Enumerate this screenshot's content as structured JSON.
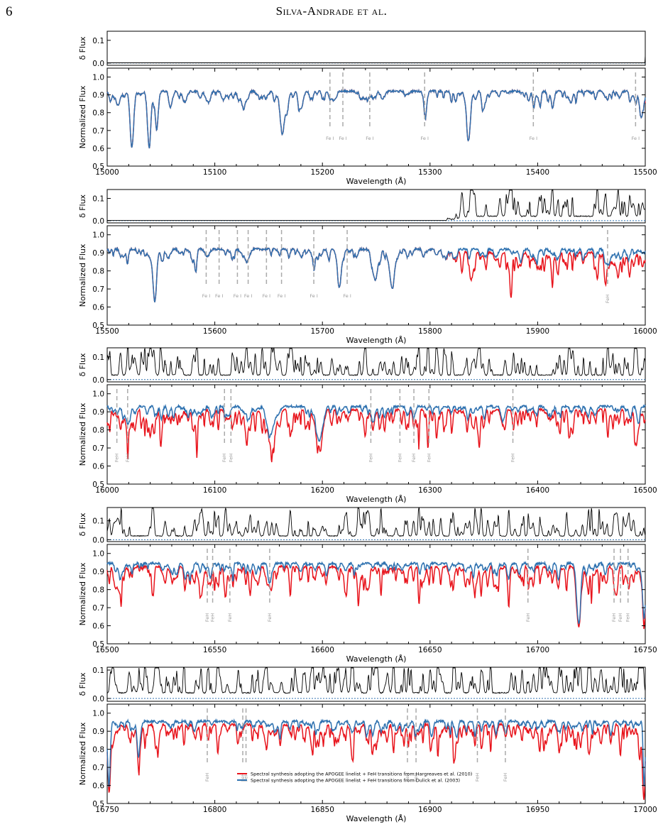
{
  "page": {
    "number": "6",
    "running_head": "Silva-Andrade et al."
  },
  "colors": {
    "red_model": "#e8141c",
    "blue_model": "#2f72b0",
    "residual": "#000000",
    "zero_line": "#2f72b0",
    "line_marker": "#aaaaaa"
  },
  "chart_data": [
    {
      "type": "line",
      "panel": 1,
      "xlabel": "Wavelength (Å)",
      "ylabel_top": "δ Flux",
      "ylabel_bottom": "Normalized Flux",
      "xlim": [
        15000,
        15500
      ],
      "xticks": [
        15000,
        15100,
        15200,
        15300,
        15400,
        15500
      ],
      "ylim_top": [
        -0.01,
        0.14
      ],
      "yticks_top": [
        0.0,
        0.1
      ],
      "ylim_bottom": [
        0.5,
        1.05
      ],
      "yticks_bottom": [
        0.5,
        0.6,
        0.7,
        0.8,
        0.9,
        1.0
      ],
      "divergence_start": 15500,
      "divergence_full": 15500,
      "continuum": 0.92,
      "absorption_features": [
        {
          "x": 15023,
          "depth": 0.31,
          "width": 1.6
        },
        {
          "x": 15039,
          "depth": 0.3,
          "width": 1.6
        },
        {
          "x": 15046,
          "depth": 0.2,
          "width": 1.5
        },
        {
          "x": 15163,
          "depth": 0.22,
          "width": 1.6
        },
        {
          "x": 15167,
          "depth": 0.12,
          "width": 1.5
        },
        {
          "x": 15336,
          "depth": 0.26,
          "width": 1.6
        },
        {
          "x": 15296,
          "depth": 0.06,
          "width": 1.5
        },
        {
          "x": 15211,
          "depth": 0.05,
          "width": 1.5
        },
        {
          "x": 15010,
          "depth": 0.08,
          "width": 2
        },
        {
          "x": 15072,
          "depth": 0.06,
          "width": 2
        },
        {
          "x": 15093,
          "depth": 0.05,
          "width": 2
        },
        {
          "x": 15128,
          "depth": 0.06,
          "width": 2
        },
        {
          "x": 15180,
          "depth": 0.1,
          "width": 2
        },
        {
          "x": 15256,
          "depth": 0.04,
          "width": 2
        },
        {
          "x": 15430,
          "depth": 0.04,
          "width": 2
        },
        {
          "x": 15497,
          "depth": 0.08,
          "width": 2
        }
      ],
      "line_markers": [
        {
          "x": 15207,
          "label": "Fe I"
        },
        {
          "x": 15219,
          "label": "Fe I"
        },
        {
          "x": 15244,
          "label": "Fe I"
        },
        {
          "x": 15295,
          "label": "Fe I"
        },
        {
          "x": 15396,
          "label": "Fe I"
        },
        {
          "x": 15491,
          "label": "Fe I"
        }
      ]
    },
    {
      "type": "line",
      "panel": 2,
      "xlabel": "Wavelength (Å)",
      "ylabel_top": "δ Flux",
      "ylabel_bottom": "Normalized Flux",
      "xlim": [
        15500,
        16000
      ],
      "xticks": [
        15500,
        15600,
        15700,
        15800,
        15900,
        16000
      ],
      "ylim_top": [
        -0.01,
        0.14
      ],
      "yticks_top": [
        0.0,
        0.1
      ],
      "ylim_bottom": [
        0.5,
        1.05
      ],
      "yticks_bottom": [
        0.5,
        0.6,
        0.7,
        0.8,
        0.9,
        1.0
      ],
      "divergence_start": 15815,
      "divergence_full": 15840,
      "continuum": 0.92,
      "absorption_features": [
        {
          "x": 15544,
          "depth": 0.24,
          "width": 1.5
        },
        {
          "x": 15716,
          "depth": 0.2,
          "width": 1.6
        },
        {
          "x": 15748,
          "depth": 0.13,
          "width": 2.2
        },
        {
          "x": 15765,
          "depth": 0.17,
          "width": 2.2
        },
        {
          "x": 15964,
          "depth": 0.06,
          "width": 1.6
        },
        {
          "x": 15593,
          "depth": 0.04,
          "width": 2
        },
        {
          "x": 15631,
          "depth": 0.04,
          "width": 2
        },
        {
          "x": 15692,
          "depth": 0.05,
          "width": 2
        }
      ],
      "line_markers": [
        {
          "x": 15592,
          "label": "Fe I"
        },
        {
          "x": 15604,
          "label": "Fe I"
        },
        {
          "x": 15621,
          "label": "Fe I"
        },
        {
          "x": 15631,
          "label": "Fe I"
        },
        {
          "x": 15648,
          "label": "Fe I"
        },
        {
          "x": 15662,
          "label": "Fe I"
        },
        {
          "x": 15692,
          "label": "Fe I"
        },
        {
          "x": 15723,
          "label": "Fe I"
        },
        {
          "x": 15965,
          "label": "FeH"
        }
      ]
    },
    {
      "type": "line",
      "panel": 3,
      "xlabel": "Wavelength (Å)",
      "ylabel_top": "δ Flux",
      "ylabel_bottom": "Normalized Flux",
      "xlim": [
        16000,
        16500
      ],
      "xticks": [
        16000,
        16100,
        16200,
        16300,
        16400,
        16500
      ],
      "ylim_top": [
        -0.01,
        0.14
      ],
      "yticks_top": [
        0.0,
        0.1
      ],
      "ylim_bottom": [
        0.5,
        1.05
      ],
      "yticks_bottom": [
        0.5,
        0.6,
        0.7,
        0.8,
        0.9,
        1.0
      ],
      "divergence_start": 15990,
      "divergence_full": 16000,
      "continuum": 0.93,
      "absorption_features": [
        {
          "x": 16152,
          "depth": 0.15,
          "width": 2.6
        },
        {
          "x": 16197,
          "depth": 0.18,
          "width": 2.8
        },
        {
          "x": 16247,
          "depth": 0.06,
          "width": 2
        },
        {
          "x": 16112,
          "depth": 0.05,
          "width": 2
        },
        {
          "x": 16020,
          "depth": 0.05,
          "width": 2
        }
      ],
      "line_markers": [
        {
          "x": 16009,
          "label": "FeH"
        },
        {
          "x": 16019,
          "label": "FeH"
        },
        {
          "x": 16109,
          "label": "FeH"
        },
        {
          "x": 16115,
          "label": "FeH"
        },
        {
          "x": 16245,
          "label": "FeH"
        },
        {
          "x": 16272,
          "label": "FeH"
        },
        {
          "x": 16285,
          "label": "FeH"
        },
        {
          "x": 16299,
          "label": "FeH"
        },
        {
          "x": 16377,
          "label": "FeH"
        }
      ]
    },
    {
      "type": "line",
      "panel": 4,
      "xlabel": "Wavelength (Å)",
      "ylabel_top": "δ Flux",
      "ylabel_bottom": "Normalized Flux",
      "xlim": [
        16500,
        16750
      ],
      "xticks": [
        16500,
        16550,
        16600,
        16650,
        16700,
        16750
      ],
      "ylim_top": [
        -0.01,
        0.17
      ],
      "yticks_top": [
        0.0,
        0.1
      ],
      "ylim_bottom": [
        0.5,
        1.05
      ],
      "yticks_bottom": [
        0.5,
        0.6,
        0.7,
        0.8,
        0.9,
        1.0
      ],
      "divergence_start": 16490,
      "divergence_full": 16500,
      "continuum": 0.945,
      "absorption_features": [
        {
          "x": 16719,
          "depth": 0.32,
          "width": 1.8
        },
        {
          "x": 16749.5,
          "depth": 0.28,
          "width": 1.3
        },
        {
          "x": 16548,
          "depth": 0.05,
          "width": 1.3
        },
        {
          "x": 16576,
          "depth": 0.04,
          "width": 1.3
        },
        {
          "x": 16602,
          "depth": 0.03,
          "width": 1.3
        }
      ],
      "line_markers": [
        {
          "x": 16546.5,
          "label": "FeH"
        },
        {
          "x": 16549,
          "label": "FeH"
        },
        {
          "x": 16557,
          "label": "FeH"
        },
        {
          "x": 16575.5,
          "label": "FeH"
        },
        {
          "x": 16695.5,
          "label": "FeH"
        },
        {
          "x": 16735.5,
          "label": "FeH"
        },
        {
          "x": 16738.5,
          "label": "FeH"
        },
        {
          "x": 16742,
          "label": "FeH"
        }
      ]
    },
    {
      "type": "line",
      "panel": 5,
      "xlabel": "Wavelength (Å)",
      "ylabel_top": "δ Flux",
      "ylabel_bottom": "Normalized Flux",
      "xlim": [
        16750,
        17000
      ],
      "xticks": [
        16750,
        16800,
        16850,
        16900,
        16950,
        17000
      ],
      "ylim_top": [
        -0.01,
        0.11
      ],
      "yticks_top": [
        0.0,
        0.1
      ],
      "ylim_bottom": [
        0.5,
        1.05
      ],
      "yticks_bottom": [
        0.5,
        0.6,
        0.7,
        0.8,
        0.9,
        1.0
      ],
      "divergence_start": 16740,
      "divergence_full": 16750,
      "continuum": 0.955,
      "absorption_features": [
        {
          "x": 16764.5,
          "depth": 0.19,
          "width": 1.2
        },
        {
          "x": 16750.8,
          "depth": 0.36,
          "width": 1.2
        },
        {
          "x": 16999.5,
          "depth": 0.35,
          "width": 0.9
        },
        {
          "x": 16813,
          "depth": 0.03,
          "width": 1.2
        },
        {
          "x": 16890,
          "depth": 0.03,
          "width": 1.2
        },
        {
          "x": 16935,
          "depth": 0.03,
          "width": 1.2
        }
      ],
      "line_markers": [
        {
          "x": 16796.5,
          "label": "FeH"
        },
        {
          "x": 16813,
          "label": "FeH"
        },
        {
          "x": 16814.5,
          "label": "FeH"
        },
        {
          "x": 16889.5,
          "label": "FeH"
        },
        {
          "x": 16893.5,
          "label": "FeH"
        },
        {
          "x": 16922,
          "label": "FeH"
        },
        {
          "x": 16935,
          "label": "FeH"
        }
      ],
      "legend": [
        {
          "label": "Spectral synthesis adopting the APOGEE linelist + FeH transitions from  Hargreaves et al. (2010)",
          "color": "#e8141c"
        },
        {
          "label": "Spectral synthesis adopting the APOGEE linelist + FeH transitions from Dulick et al. (2003)",
          "color": "#2f72b0"
        }
      ],
      "legend_placement": "lower-center"
    }
  ]
}
